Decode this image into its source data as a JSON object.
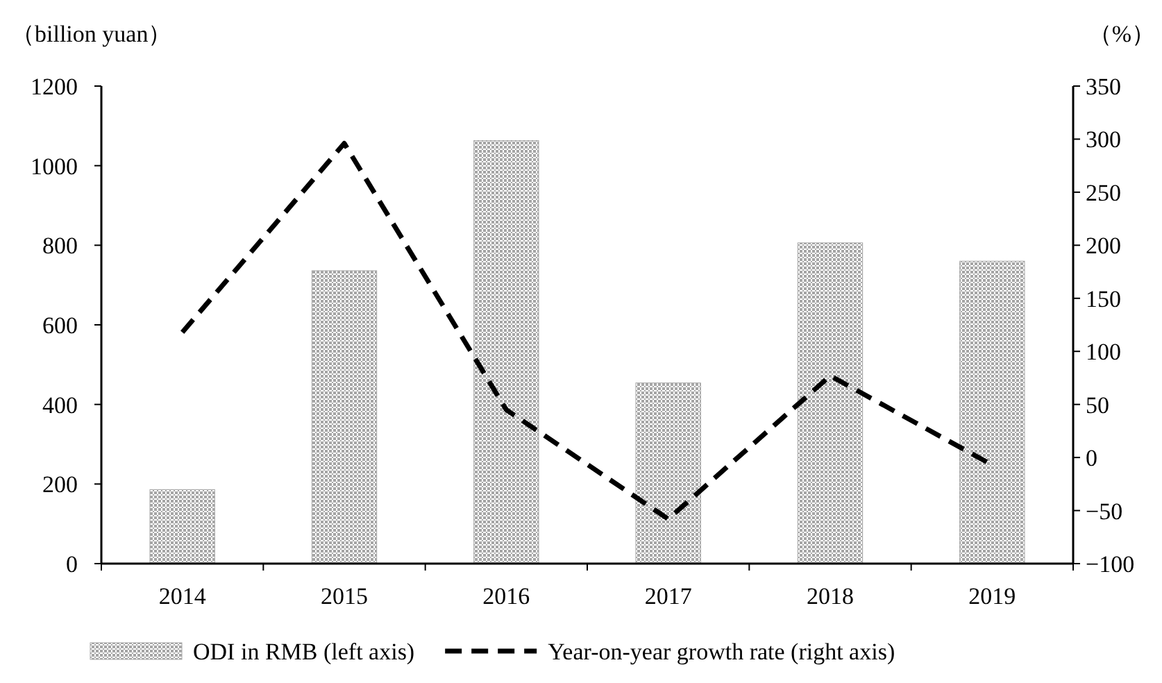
{
  "chart_data": {
    "type": "bar",
    "ylabel": "（billion yuan）",
    "y2label": "（%）",
    "categories": [
      "2014",
      "2015",
      "2016",
      "2017",
      "2018",
      "2019"
    ],
    "series": [
      {
        "name": "ODI in RMB (left axis)",
        "color": "#a6a6a6",
        "values": [
          186,
          736,
          1063,
          454,
          806,
          760
        ]
      },
      {
        "name": "Year-on-year growth rate (right axis)",
        "type": "line",
        "axis": "y2",
        "color": "#000000",
        "line_style": "dashed",
        "values": [
          118,
          296,
          45,
          -58,
          77,
          -7
        ]
      }
    ],
    "ylim": [
      0,
      1200
    ],
    "yticks": [
      0,
      200,
      400,
      600,
      800,
      1000,
      1200
    ],
    "y2lim": [
      -100,
      350
    ],
    "y2ticks": [
      -100,
      -50,
      0,
      50,
      100,
      150,
      200,
      250,
      300,
      350
    ],
    "grid": false,
    "legend": "bottom"
  }
}
